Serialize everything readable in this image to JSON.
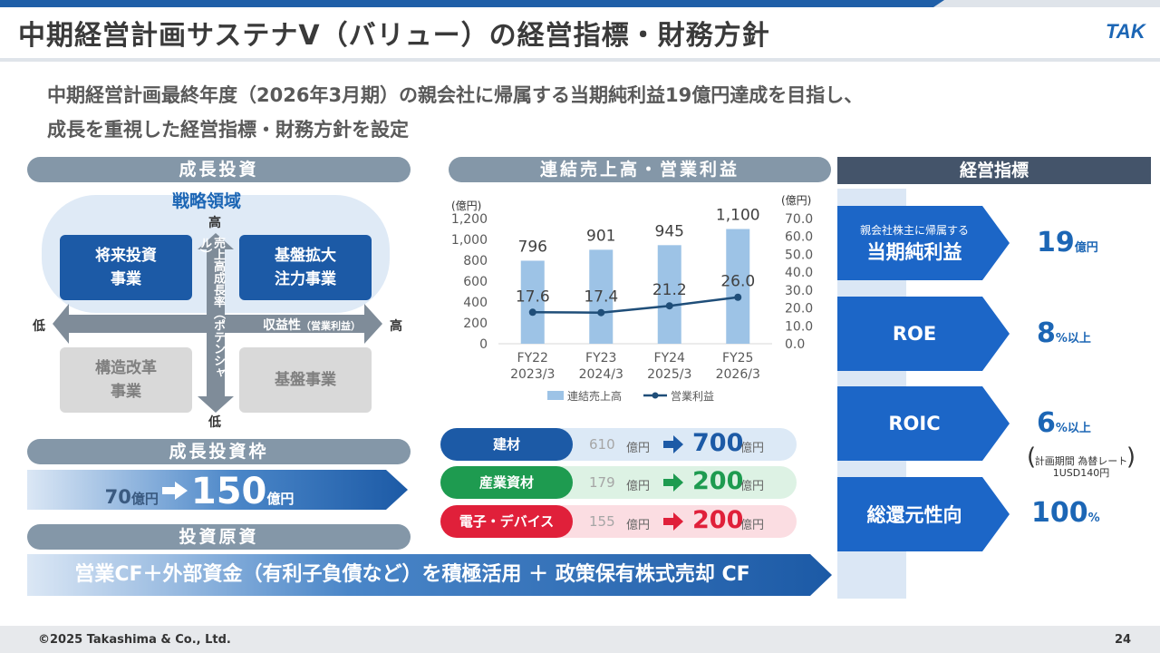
{
  "header": {
    "title": "中期経営計画サステナV（バリュー）の経営指標・財務方針",
    "logo_text": "TAK"
  },
  "lead": {
    "line1": "中期経営計画最終年度（2026年3月期）の親会社に帰属する当期純利益19億円達成を目指し、",
    "line2": "成長を重視した経営指標・財務方針を設定"
  },
  "growth_investment": {
    "header": "成長投資",
    "strategic_area": "戦略領域",
    "boxes": {
      "top_left": "将来投資\n事業",
      "top_right": "基盤拡大\n注力事業",
      "bottom_left": "構造改革\n事業",
      "bottom_right": "基盤事業"
    },
    "vertical_axis": {
      "high": "高",
      "low": "低",
      "label": "売上高成長率（ポテンシャル）"
    },
    "horizontal_axis": {
      "low": "低",
      "high": "高",
      "label": "収益性",
      "sub": "（営業利益）"
    }
  },
  "investment_frame": {
    "header": "成長投資枠",
    "before": "70",
    "before_unit": "億円",
    "after": "150",
    "after_unit": "億円"
  },
  "funding": {
    "header": "投資原資",
    "text": "営業CF＋外部資金（有利子負債など）を積極活用 ＋ 政策保有株式売却 CF"
  },
  "chart_section": {
    "header": "連結売上高・営業利益"
  },
  "chart_data": {
    "type": "bar",
    "categories": [
      "FY22\n2023/3",
      "FY23\n2024/3",
      "FY24\n2025/3",
      "FY25\n2026/3"
    ],
    "category_lines": [
      [
        "FY22",
        "2023/3"
      ],
      [
        "FY23",
        "2024/3"
      ],
      [
        "FY24",
        "2025/3"
      ],
      [
        "FY25",
        "2026/3"
      ]
    ],
    "series": [
      {
        "name": "連結売上高",
        "type": "bar",
        "axis": "left",
        "values": [
          796,
          901,
          945,
          1100
        ],
        "labels": [
          "796",
          "901",
          "945",
          "1,100"
        ],
        "color": "#9dc3e6"
      },
      {
        "name": "営業利益",
        "type": "line",
        "axis": "right",
        "values": [
          17.6,
          17.4,
          21.2,
          26.0
        ],
        "labels": [
          "17.6",
          "17.4",
          "21.2",
          "26.0"
        ],
        "color": "#1f4e79"
      }
    ],
    "left_axis": {
      "unit": "(億円)",
      "ylim": [
        0,
        1200
      ],
      "ticks": [
        "0",
        "200",
        "400",
        "600",
        "800",
        "1,000",
        "1,200"
      ]
    },
    "right_axis": {
      "unit": "(億円)",
      "ylim": [
        0,
        70
      ],
      "ticks": [
        "0.0",
        "10.0",
        "20.0",
        "30.0",
        "40.0",
        "50.0",
        "60.0",
        "70.0"
      ]
    },
    "legend": "bottom"
  },
  "segments": [
    {
      "label": "建材",
      "before": "610",
      "unit": "億円",
      "after": "700",
      "after_unit": "億円",
      "color": "#1c5aa6",
      "bg": "#dce9f6",
      "value_color": "#1c5aa6"
    },
    {
      "label": "産業資材",
      "before": "179",
      "unit": "億円",
      "after": "200",
      "after_unit": "億円",
      "color": "#1e9b50",
      "bg": "#ddf2e4",
      "value_color": "#1e9b50"
    },
    {
      "label": "電子・デバイス",
      "before": "155",
      "unit": "億円",
      "after": "200",
      "after_unit": "億円",
      "color": "#e0203a",
      "bg": "#fbdde2",
      "value_color": "#e0203a"
    }
  ],
  "kpi": {
    "header": "経営指標",
    "items": [
      {
        "small": "親会社株主に帰属する",
        "big": "当期純利益",
        "value": "19",
        "unit": "億円"
      },
      {
        "small": "",
        "big": "ROE",
        "value": "8",
        "unit": "%以上"
      },
      {
        "small": "",
        "big": "ROIC",
        "value": "6",
        "unit": "%以上"
      },
      {
        "small": "",
        "big": "総還元性向",
        "value": "100",
        "unit": "%"
      }
    ],
    "roic_note_line1": "計画期間 為替レート",
    "roic_note_line2": "1USD140円"
  },
  "footer": {
    "copyright": "©2025 Takashima & Co., Ltd.",
    "page": "24"
  }
}
